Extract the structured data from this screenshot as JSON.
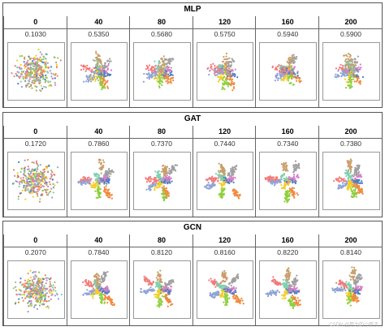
{
  "palette": [
    "#4a7fc1",
    "#f08a3e",
    "#8fcf3e",
    "#f2cf2a",
    "#8fa3d6",
    "#f27a7a",
    "#7ed0b0",
    "#c99e6a",
    "#a0a0a0",
    "#d97fc5"
  ],
  "chart_data": [
    {
      "type": "scatter",
      "title": "MLP",
      "panels": [
        {
          "epoch": "0",
          "accuracy": "0.1030"
        },
        {
          "epoch": "40",
          "accuracy": "0.5350"
        },
        {
          "epoch": "80",
          "accuracy": "0.5680"
        },
        {
          "epoch": "120",
          "accuracy": "0.5750"
        },
        {
          "epoch": "160",
          "accuracy": "0.5940"
        },
        {
          "epoch": "200",
          "accuracy": "0.5900"
        }
      ]
    },
    {
      "type": "scatter",
      "title": "GAT",
      "panels": [
        {
          "epoch": "0",
          "accuracy": "0.1720"
        },
        {
          "epoch": "40",
          "accuracy": "0.7860"
        },
        {
          "epoch": "80",
          "accuracy": "0.7370"
        },
        {
          "epoch": "120",
          "accuracy": "0.7440"
        },
        {
          "epoch": "160",
          "accuracy": "0.7340"
        },
        {
          "epoch": "200",
          "accuracy": "0.7380"
        }
      ]
    },
    {
      "type": "scatter",
      "title": "GCN",
      "panels": [
        {
          "epoch": "0",
          "accuracy": "0.2070"
        },
        {
          "epoch": "40",
          "accuracy": "0.7840"
        },
        {
          "epoch": "80",
          "accuracy": "0.8120"
        },
        {
          "epoch": "120",
          "accuracy": "0.8160"
        },
        {
          "epoch": "160",
          "accuracy": "0.8220"
        },
        {
          "epoch": "200",
          "accuracy": "0.8140"
        }
      ]
    }
  ],
  "watermark": "CSDN @努力的小胖子"
}
